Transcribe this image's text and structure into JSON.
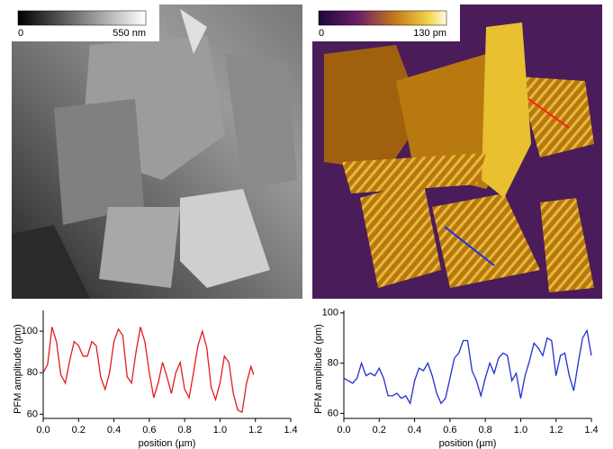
{
  "images": [
    {
      "min_label": "0",
      "max_label": "550 nm"
    },
    {
      "min_label": "0",
      "max_label": "130 pm"
    }
  ],
  "chart_data": [
    {
      "type": "line",
      "xlabel": "position (µm)",
      "ylabel": "PFM amplitude (pm)",
      "xlim": [
        0,
        1.4
      ],
      "ylim": [
        58,
        110
      ],
      "xticks": [
        {
          "value": 0,
          "label": "0.0"
        },
        0.2,
        0.4,
        0.6,
        0.8,
        {
          "value": 1,
          "label": "1.0"
        },
        1.2,
        1.4
      ],
      "yticks": [
        60,
        80,
        100
      ],
      "series": [
        {
          "color": "#e41a1c",
          "x": [
            0,
            0.025,
            0.05,
            0.075,
            0.1,
            0.125,
            0.15,
            0.175,
            0.2,
            0.225,
            0.25,
            0.275,
            0.3,
            0.325,
            0.35,
            0.375,
            0.4,
            0.425,
            0.45,
            0.475,
            0.5,
            0.525,
            0.55,
            0.575,
            0.6,
            0.625,
            0.65,
            0.675,
            0.7,
            0.725,
            0.75,
            0.775,
            0.8,
            0.825,
            0.85,
            0.875,
            0.9,
            0.925,
            0.95,
            0.975,
            1,
            1.025,
            1.05,
            1.075,
            1.1,
            1.125,
            1.15,
            1.175,
            1.19
          ],
          "values": [
            80,
            84,
            102,
            95,
            79,
            75,
            86,
            95,
            93,
            88,
            88,
            95,
            93,
            78,
            72,
            80,
            95,
            101,
            98,
            78,
            75,
            90,
            102,
            95,
            80,
            68,
            75,
            85,
            78,
            70,
            80,
            85,
            72,
            68,
            80,
            93,
            100,
            92,
            73,
            67,
            75,
            88,
            85,
            70,
            62,
            61,
            75,
            83,
            79
          ]
        }
      ]
    },
    {
      "type": "line",
      "xlabel": "position (µm)",
      "ylabel": "PFM amplitude (pm)",
      "xlim": [
        0,
        1.4
      ],
      "ylim": [
        58,
        101
      ],
      "xticks": [
        {
          "value": 0,
          "label": "0.0"
        },
        0.2,
        0.4,
        0.6,
        0.8,
        {
          "value": 1,
          "label": "1.0"
        },
        1.2,
        1.4
      ],
      "yticks": [
        60,
        80,
        100
      ],
      "series": [
        {
          "color": "#1f2fcf",
          "x": [
            0,
            0.025,
            0.05,
            0.075,
            0.1,
            0.125,
            0.15,
            0.175,
            0.2,
            0.225,
            0.25,
            0.275,
            0.3,
            0.325,
            0.35,
            0.375,
            0.4,
            0.425,
            0.45,
            0.475,
            0.5,
            0.525,
            0.55,
            0.575,
            0.6,
            0.625,
            0.65,
            0.675,
            0.7,
            0.725,
            0.75,
            0.775,
            0.8,
            0.825,
            0.85,
            0.875,
            0.9,
            0.925,
            0.95,
            0.975,
            1,
            1.025,
            1.05,
            1.075,
            1.1,
            1.125,
            1.15,
            1.175,
            1.2,
            1.225,
            1.25,
            1.275,
            1.3,
            1.325,
            1.35,
            1.375,
            1.4
          ],
          "values": [
            74,
            73,
            72,
            74,
            80,
            75,
            76,
            75,
            78,
            74,
            67,
            67,
            68,
            66,
            67,
            64,
            73,
            78,
            77,
            80,
            75,
            68,
            64,
            66,
            74,
            82,
            84,
            89,
            89,
            77,
            73,
            67,
            74,
            80,
            76,
            82,
            84,
            83,
            73,
            76,
            66,
            75,
            81,
            88,
            86,
            83,
            90,
            89,
            75,
            83,
            84,
            75,
            69,
            80,
            90,
            93,
            83
          ]
        }
      ]
    }
  ]
}
